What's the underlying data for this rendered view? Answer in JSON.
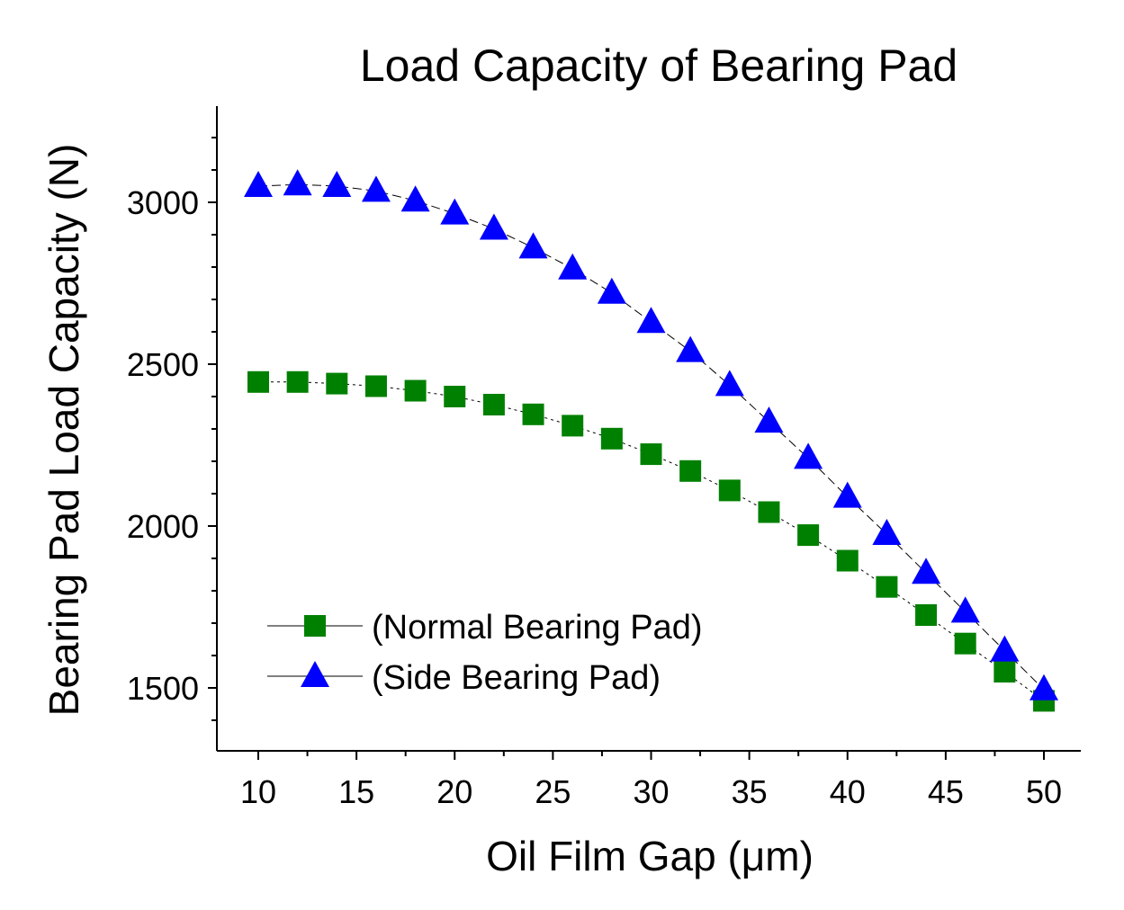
{
  "chart_data": {
    "type": "line",
    "title": "Load Capacity of Bearing Pad",
    "xlabel": "Oil Film Gap (μm)",
    "ylabel": "Bearing Pad Load Capacity (N)",
    "xlim": [
      8,
      52
    ],
    "ylim": [
      1300,
      3300
    ],
    "xticks": [
      10,
      15,
      20,
      25,
      30,
      35,
      40,
      45,
      50
    ],
    "xtick_labels": [
      "10",
      "15",
      "20",
      "25",
      "30",
      "35",
      "40",
      "45",
      "50"
    ],
    "yticks": [
      1500,
      2000,
      2500,
      3000
    ],
    "ytick_labels": [
      "1500",
      "2000",
      "2500",
      "3000"
    ],
    "legend_position": "bottom-left",
    "x": [
      10,
      12,
      14,
      16,
      18,
      20,
      22,
      24,
      26,
      28,
      30,
      32,
      34,
      36,
      38,
      40,
      42,
      44,
      46,
      48,
      50
    ],
    "series": [
      {
        "name": "(Normal Bearing Pad)",
        "marker": "square",
        "color": "#008000",
        "values": [
          2445,
          2445,
          2440,
          2432,
          2418,
          2400,
          2375,
          2345,
          2310,
          2270,
          2222,
          2170,
          2110,
          2043,
          1972,
          1893,
          1812,
          1725,
          1637,
          1550,
          1460
        ]
      },
      {
        "name": "(Side Bearing Pad)",
        "marker": "triangle",
        "color": "#0000ff",
        "values": [
          3050,
          3055,
          3050,
          3035,
          3005,
          2965,
          2918,
          2860,
          2795,
          2720,
          2630,
          2540,
          2435,
          2322,
          2210,
          2090,
          1975,
          1855,
          1735,
          1615,
          1495
        ]
      }
    ]
  }
}
